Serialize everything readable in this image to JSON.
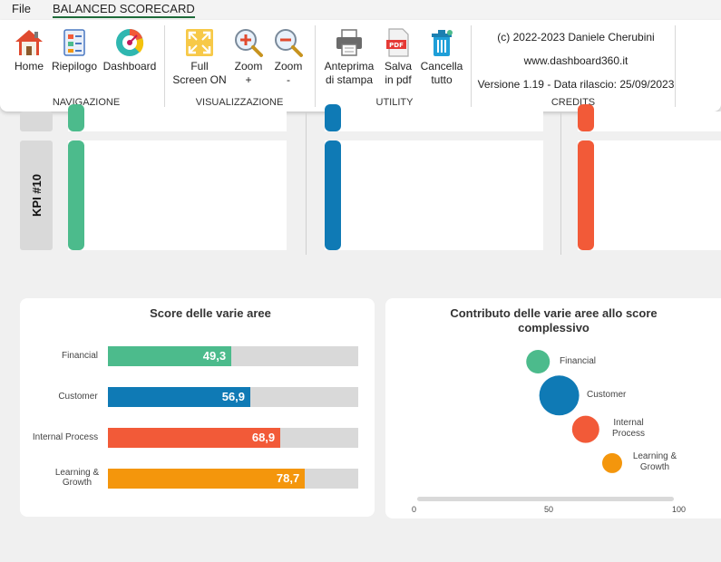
{
  "menu": {
    "file": "File",
    "active_tab": "BALANCED SCORECARD"
  },
  "ribbon": {
    "groups": {
      "navigazione": "NAVIGAZIONE",
      "visualizzazione": "VISUALIZZAZIONE",
      "utility": "UTILITY",
      "credits": "CREDITS"
    },
    "buttons": {
      "home": "Home",
      "riepilogo": "Riepilogo",
      "dashboard": "Dashboard",
      "fullscreen_1": "Full",
      "fullscreen_2": "Screen ON",
      "zoom_in_1": "Zoom",
      "zoom_in_2": "+",
      "zoom_out_1": "Zoom",
      "zoom_out_2": "-",
      "print_1": "Anteprima",
      "print_2": "di stampa",
      "pdf_1": "Salva",
      "pdf_2": "in pdf",
      "clear_1": "Cancella",
      "clear_2": "tutto"
    },
    "credits": {
      "copyright": "(c) 2022-2023 Daniele Cherubini",
      "website": "www.dashboard360.it",
      "version": "Versione 1.19 - Data rilascio: 25/09/2023"
    }
  },
  "kpi": {
    "label": "KPI #10"
  },
  "colors": {
    "financial": "#4cbb8c",
    "customer": "#0f7ab5",
    "internal": "#f25a38",
    "learning": "#f4960c"
  },
  "score_panel": {
    "title": "Score delle varie aree",
    "bars": [
      {
        "label": "Financial",
        "value": 49.3,
        "display": "49,3"
      },
      {
        "label": "Customer",
        "value": 56.9,
        "display": "56,9"
      },
      {
        "label": "Internal Process",
        "value": 68.9,
        "display": "68,9"
      },
      {
        "label_1": "Learning &",
        "label_2": "Growth",
        "value": 78.7,
        "display": "78,7"
      }
    ]
  },
  "contrib_panel": {
    "title_1": "Contributo delle varie aree allo score",
    "title_2": "complessivo",
    "bubbles": [
      {
        "label": "Financial"
      },
      {
        "label": "Customer"
      },
      {
        "label_1": "Internal",
        "label_2": "Process"
      },
      {
        "label_1": "Learning &",
        "label_2": "Growth"
      }
    ],
    "axis_ticks": [
      "0",
      "50",
      "100"
    ]
  },
  "chart_data": [
    {
      "type": "bar",
      "title": "Score delle varie aree",
      "categories": [
        "Financial",
        "Customer",
        "Internal Process",
        "Learning & Growth"
      ],
      "values": [
        49.3,
        56.9,
        68.9,
        78.7
      ],
      "xlim": [
        0,
        100
      ]
    },
    {
      "type": "scatter",
      "title": "Contributo delle varie aree allo score complessivo",
      "categories": [
        "Financial",
        "Customer",
        "Internal Process",
        "Learning & Growth"
      ],
      "x": [
        47,
        55,
        65,
        75
      ],
      "y": [
        4,
        3,
        2,
        1
      ],
      "xlim": [
        0,
        100
      ],
      "xticks": [
        0,
        50,
        100
      ]
    }
  ]
}
